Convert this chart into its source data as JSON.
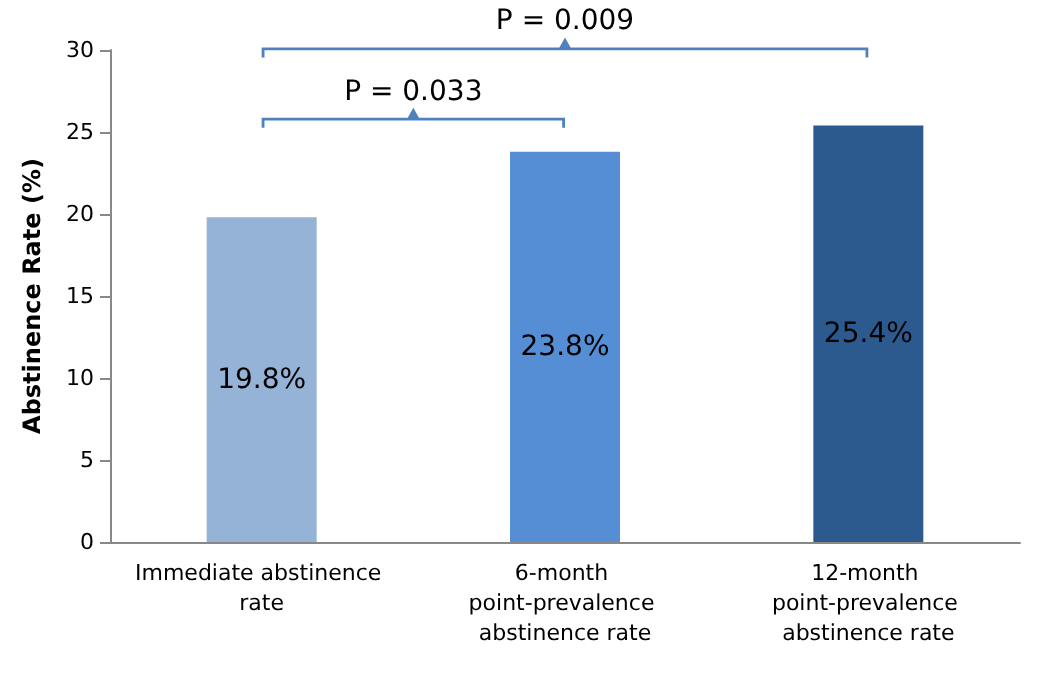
{
  "chart_data": {
    "type": "bar",
    "ylabel": "Abstinence Rate (%)",
    "categories": [
      "Immediate abstinence rate",
      "6-month point-prevalence abstinence rate",
      "12-month point-prevalence abstinence rate"
    ],
    "values": [
      19.8,
      23.8,
      25.4
    ],
    "colors": [
      "#95b3d7",
      "#558ed5",
      "#2c5a8f"
    ],
    "value_labels": [
      "19.8%",
      "23.8%",
      "25.4%"
    ],
    "ylim": [
      0,
      30
    ],
    "yticks": [
      0,
      5,
      10,
      15,
      20,
      25,
      30
    ],
    "grid": false,
    "annotations": [
      "P = 0.033",
      "P = 0.009"
    ]
  }
}
